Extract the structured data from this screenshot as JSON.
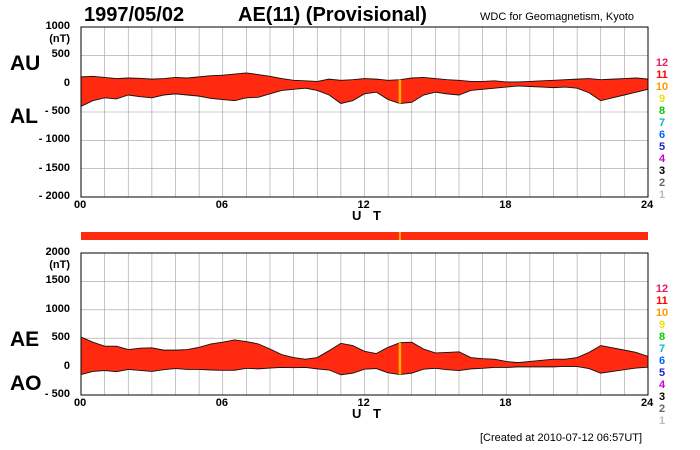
{
  "header": {
    "date": "1997/05/02",
    "title": "AE(11) (Provisional)",
    "source": "WDC for Geomagnetism, Kyoto"
  },
  "footer": {
    "created": "[Created at 2010-07-12 06:57UT]"
  },
  "colors": {
    "fill": "#ff2a10",
    "outline": "#111111",
    "grid": "#a0a0a0",
    "marker": "#ffb000"
  },
  "chart_data": [
    {
      "type": "area",
      "panel": "upper",
      "big_labels": [
        "AU",
        "AL"
      ],
      "ylabel_unit": "(nT)",
      "ylim": [
        -2000,
        1000
      ],
      "yticks": [
        1000,
        500,
        0,
        -500,
        -1000,
        -1500,
        -2000
      ],
      "ytick_labels": [
        "1000",
        "500",
        "0",
        "- 500",
        "- 1000",
        "- 1500",
        "- 2000"
      ],
      "xlim": [
        0,
        24
      ],
      "xticks": [
        "00",
        "06",
        "12",
        "18",
        "24"
      ],
      "xlabel": "U T",
      "grid": true,
      "hours": [
        0,
        0.5,
        1,
        1.5,
        2,
        2.5,
        3,
        3.5,
        4,
        4.5,
        5,
        5.5,
        6,
        6.5,
        7,
        7.5,
        8,
        8.5,
        9,
        9.5,
        10,
        10.5,
        11,
        11.5,
        12,
        12.5,
        13,
        13.5,
        14,
        14.5,
        15,
        15.5,
        16,
        16.5,
        17,
        17.5,
        18,
        18.5,
        19,
        19.5,
        20,
        20.5,
        21,
        21.5,
        22,
        22.5,
        23,
        23.5,
        24
      ],
      "series": [
        {
          "name": "AU",
          "values": [
            120,
            130,
            110,
            90,
            100,
            95,
            80,
            90,
            110,
            100,
            120,
            140,
            150,
            170,
            190,
            160,
            130,
            90,
            60,
            50,
            40,
            80,
            60,
            70,
            90,
            80,
            60,
            70,
            100,
            110,
            90,
            70,
            60,
            40,
            40,
            50,
            30,
            30,
            40,
            50,
            60,
            70,
            80,
            90,
            70,
            80,
            90,
            100,
            80
          ]
        },
        {
          "name": "AL",
          "values": [
            -400,
            -300,
            -250,
            -270,
            -200,
            -230,
            -250,
            -200,
            -180,
            -200,
            -220,
            -260,
            -280,
            -300,
            -250,
            -240,
            -180,
            -120,
            -100,
            -80,
            -120,
            -200,
            -350,
            -300,
            -180,
            -150,
            -280,
            -350,
            -330,
            -200,
            -150,
            -180,
            -200,
            -120,
            -100,
            -80,
            -60,
            -40,
            -50,
            -60,
            -70,
            -60,
            -80,
            -160,
            -300,
            -250,
            -200,
            -150,
            -100
          ]
        }
      ],
      "marker_hour": 13.5,
      "legend": [
        "12",
        "11",
        "10",
        "9",
        "8",
        "7",
        "6",
        "5",
        "4",
        "3",
        "2",
        "1"
      ],
      "legend_colors": [
        "#e0206a",
        "#ff0000",
        "#ff9900",
        "#e6e600",
        "#00cc00",
        "#00bfbf",
        "#0066ff",
        "#2222cc",
        "#cc00cc",
        "#000000",
        "#666666",
        "#bbbbbb"
      ]
    },
    {
      "type": "area",
      "panel": "lower",
      "big_labels": [
        "AE",
        "AO"
      ],
      "ylabel_unit": "(nT)",
      "ylim": [
        -500,
        2000
      ],
      "yticks": [
        2000,
        1500,
        1000,
        500,
        0,
        -500
      ],
      "ytick_labels": [
        "2000",
        "1500",
        "1000",
        "500",
        "0",
        "- 500"
      ],
      "xlim": [
        0,
        24
      ],
      "xticks": [
        "00",
        "06",
        "12",
        "18",
        "24"
      ],
      "xlabel": "U T",
      "grid": true,
      "hours": [
        0,
        0.5,
        1,
        1.5,
        2,
        2.5,
        3,
        3.5,
        4,
        4.5,
        5,
        5.5,
        6,
        6.5,
        7,
        7.5,
        8,
        8.5,
        9,
        9.5,
        10,
        10.5,
        11,
        11.5,
        12,
        12.5,
        13,
        13.5,
        14,
        14.5,
        15,
        15.5,
        16,
        16.5,
        17,
        17.5,
        18,
        18.5,
        19,
        19.5,
        20,
        20.5,
        21,
        21.5,
        22,
        22.5,
        23,
        23.5,
        24
      ],
      "series": [
        {
          "name": "AE",
          "values": [
            520,
            430,
            360,
            360,
            300,
            325,
            330,
            290,
            290,
            300,
            340,
            400,
            430,
            470,
            440,
            400,
            310,
            210,
            160,
            130,
            160,
            280,
            410,
            370,
            270,
            230,
            340,
            420,
            430,
            310,
            240,
            250,
            260,
            160,
            140,
            130,
            90,
            70,
            90,
            110,
            130,
            130,
            160,
            250,
            370,
            330,
            290,
            250,
            180
          ]
        },
        {
          "name": "AO",
          "values": [
            -140,
            -85,
            -70,
            -90,
            -50,
            -68,
            -85,
            -55,
            -35,
            -50,
            -50,
            -60,
            -65,
            -65,
            -30,
            -40,
            -25,
            -15,
            -20,
            -15,
            -40,
            -60,
            -145,
            -115,
            -45,
            -35,
            -110,
            -140,
            -115,
            -45,
            -30,
            -55,
            -70,
            -40,
            -30,
            -15,
            -15,
            -5,
            -5,
            -5,
            -5,
            5,
            0,
            -35,
            -115,
            -85,
            -55,
            -25,
            -10
          ]
        }
      ],
      "marker_hour": 13.5,
      "legend": [
        "12",
        "11",
        "10",
        "9",
        "8",
        "7",
        "6",
        "5",
        "4",
        "3",
        "2",
        "1"
      ],
      "legend_colors": [
        "#e0206a",
        "#ff0000",
        "#ff9900",
        "#e6e600",
        "#00cc00",
        "#00bfbf",
        "#0066ff",
        "#2222cc",
        "#cc00cc",
        "#000000",
        "#666666",
        "#bbbbbb"
      ]
    }
  ]
}
